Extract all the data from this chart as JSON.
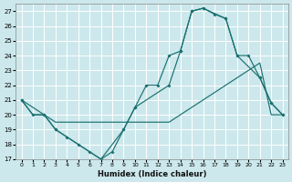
{
  "xlabel": "Humidex (Indice chaleur)",
  "bg_color": "#cce8ec",
  "grid_color": "#ffffff",
  "line_color": "#1a7070",
  "line1_x": [
    0,
    1,
    2,
    3,
    4,
    5,
    6,
    7,
    8,
    9,
    10,
    11,
    12,
    13,
    14,
    15,
    16,
    17,
    18,
    19,
    20,
    21,
    22,
    23
  ],
  "line1_y": [
    21,
    20,
    20,
    19,
    18.5,
    18,
    17.5,
    17,
    17.5,
    19,
    20.5,
    22,
    22,
    24,
    24.3,
    27,
    27.2,
    26.8,
    26.5,
    24,
    24,
    22.5,
    20.8,
    20
  ],
  "line2_x": [
    0,
    1,
    2,
    3,
    4,
    5,
    6,
    7,
    8,
    9,
    10,
    11,
    12,
    13,
    14,
    15,
    16,
    17,
    18,
    19,
    20,
    21,
    22,
    23
  ],
  "line2_y": [
    21,
    20,
    20,
    19.5,
    19.5,
    19.5,
    19.5,
    19.5,
    19.5,
    19.5,
    19.5,
    19.5,
    19.5,
    19.5,
    20,
    20.5,
    21,
    21.5,
    22,
    22.5,
    23,
    23.5,
    20,
    20
  ],
  "line3_x": [
    0,
    2,
    3,
    7,
    9,
    10,
    13,
    14,
    15,
    16,
    18,
    19,
    21,
    22,
    23
  ],
  "line3_y": [
    21,
    20,
    19,
    17,
    19,
    20.5,
    22,
    24.3,
    27,
    27.2,
    26.5,
    24,
    22.5,
    20.8,
    20
  ],
  "xlim": [
    -0.5,
    23.5
  ],
  "ylim": [
    17,
    27.5
  ],
  "yticks": [
    17,
    18,
    19,
    20,
    21,
    22,
    23,
    24,
    25,
    26,
    27
  ],
  "xticks": [
    0,
    1,
    2,
    3,
    4,
    5,
    6,
    7,
    8,
    9,
    10,
    11,
    12,
    13,
    14,
    15,
    16,
    17,
    18,
    19,
    20,
    21,
    22,
    23
  ]
}
